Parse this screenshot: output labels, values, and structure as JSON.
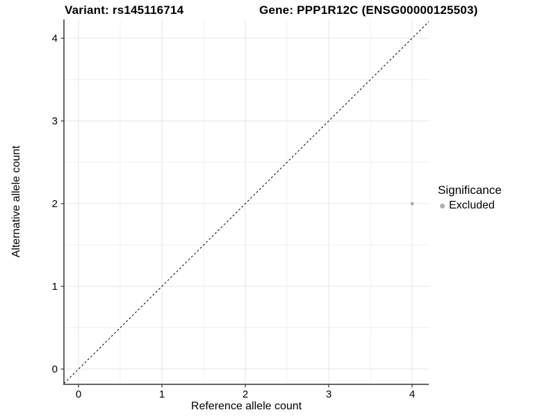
{
  "figure": {
    "title_variant": "Variant: rs145116714",
    "title_gene": "Gene: PPP1R12C (ENSG00000125503)"
  },
  "chart_data": {
    "type": "scatter",
    "title": "Variant: rs145116714   Gene: PPP1R12C (ENSG00000125503)",
    "xlabel": "Reference allele count",
    "ylabel": "Alternative allele count",
    "xlim": [
      -0.2,
      4.2
    ],
    "ylim": [
      -0.2,
      4.25
    ],
    "xticks": [
      0,
      1,
      2,
      3,
      4
    ],
    "yticks": [
      0,
      1,
      2,
      3,
      4
    ],
    "grid": {
      "on": true,
      "minor_ticks": [
        0.5,
        1.5,
        2.5,
        3.5
      ]
    },
    "series": [
      {
        "name": "Excluded",
        "points": [
          {
            "x": 4,
            "y": 2
          }
        ]
      }
    ],
    "reference_line": {
      "type": "identity",
      "slope": 1,
      "intercept": 0,
      "style": "dashed"
    },
    "legend": {
      "position": "right",
      "title": "Significance",
      "entries": [
        {
          "label": "Excluded"
        }
      ]
    },
    "colors": {
      "point": "#b3b3b3",
      "legend_marker": "#aeaeae",
      "grid_major": "#e4e4e4",
      "grid_minor": "#f0f0f0",
      "axis_line": "#333333",
      "tick_mark": "#333333",
      "tick_text": "#000000",
      "dashed_line": "#000000",
      "background": "#ffffff"
    }
  }
}
